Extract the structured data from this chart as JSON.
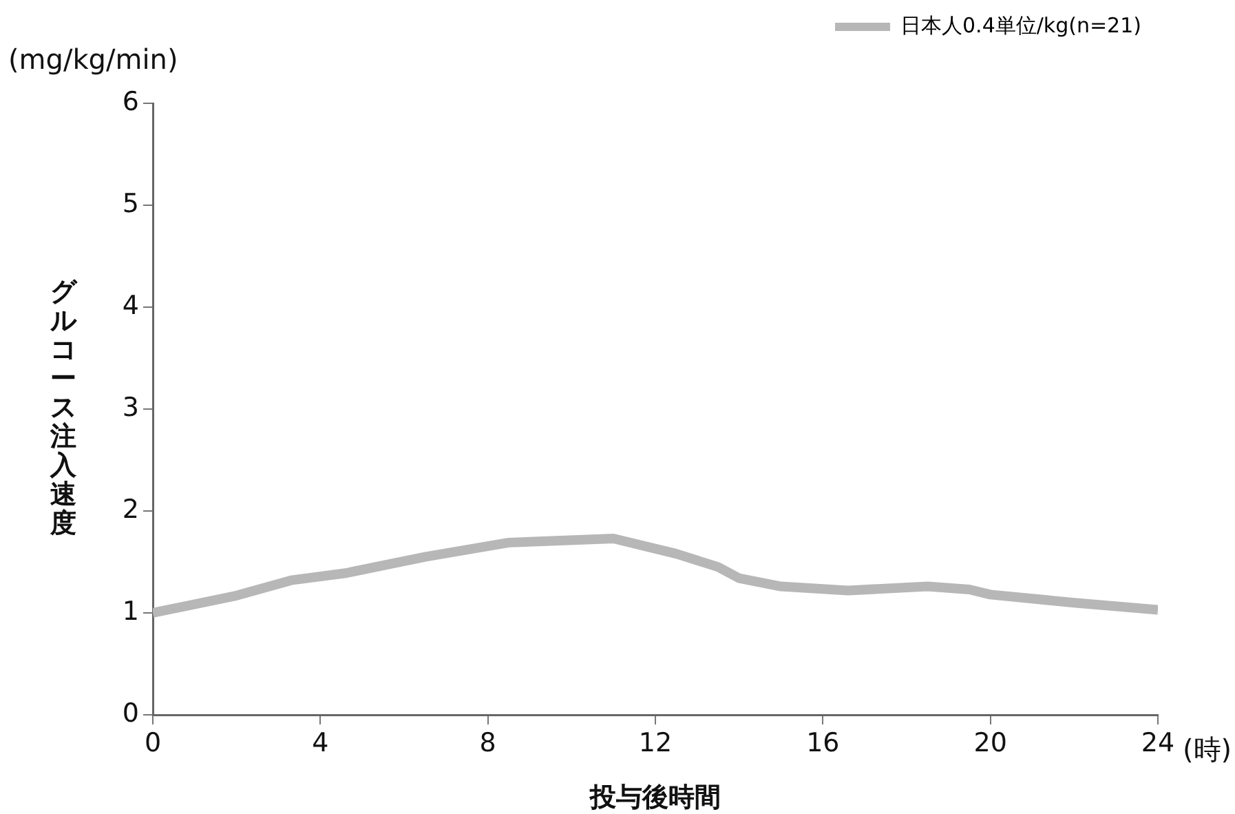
{
  "chart_data": {
    "type": "line",
    "xlabel": "投与後時間",
    "ylabel": "グルコース注入速度",
    "annotations": [
      "(mg/kg/min)",
      "(時)"
    ],
    "x": [
      0,
      2,
      3.3,
      4.6,
      6.5,
      8.5,
      11,
      12.5,
      13.5,
      14,
      15,
      16.6,
      18.5,
      19.5,
      20,
      22,
      24
    ],
    "series": [
      {
        "name": "日本人0.4単位/kg(n=21)",
        "color": "#b7b7b7",
        "values": [
          1.0,
          1.17,
          1.32,
          1.39,
          1.55,
          1.69,
          1.73,
          1.58,
          1.45,
          1.34,
          1.26,
          1.22,
          1.26,
          1.23,
          1.18,
          1.1,
          1.03
        ]
      }
    ],
    "xlim": [
      0,
      24
    ],
    "xticks": [
      0,
      4,
      8,
      12,
      16,
      20,
      24
    ],
    "ylim": [
      0,
      6
    ],
    "yticks": [
      0,
      1,
      2,
      3,
      4,
      5,
      6
    ],
    "grid": false,
    "legend": "top right",
    "marker": "none",
    "line_style": "solid"
  }
}
